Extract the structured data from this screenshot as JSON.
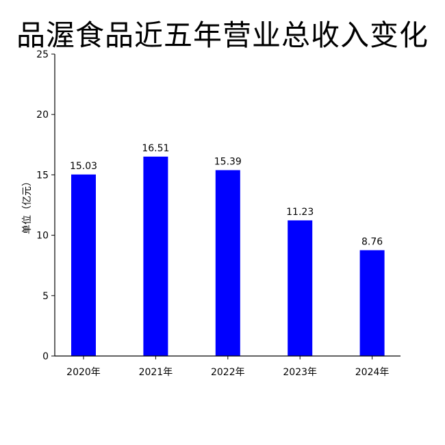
{
  "chart_data": {
    "type": "bar",
    "title": "品渥食品近五年营业总收入变化",
    "ylabel": "单位（亿元）",
    "xlabel": "",
    "categories": [
      "2020年",
      "2021年",
      "2022年",
      "2023年",
      "2024年"
    ],
    "values": [
      15.03,
      16.51,
      15.39,
      11.23,
      8.76
    ],
    "data_labels": [
      "15.03",
      "16.51",
      "15.39",
      "11.23",
      "8.76"
    ],
    "ylim": [
      0,
      25
    ],
    "yticks": [
      "0",
      "5",
      "10",
      "15",
      "20",
      "25"
    ],
    "bar_color": "#0000ff",
    "grid": false,
    "legend": "none"
  }
}
